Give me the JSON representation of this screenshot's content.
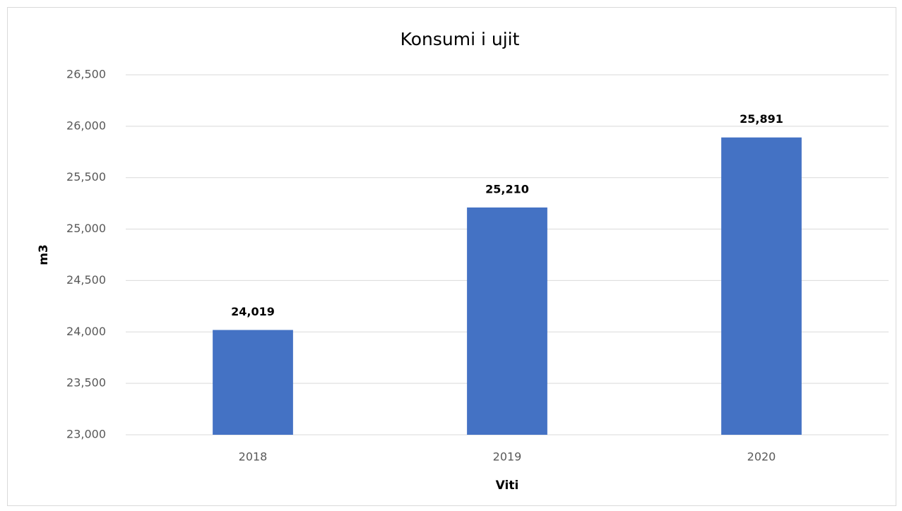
{
  "chart_data": {
    "type": "bar",
    "title": "Konsumi i ujit",
    "x_label": "Viti",
    "y_label": "m3",
    "categories": [
      "2018",
      "2019",
      "2020"
    ],
    "values": [
      24019,
      25210,
      25891
    ],
    "value_labels": [
      "24,019",
      "25,210",
      "25,891"
    ],
    "color": "#4472c4",
    "ylim": [
      23000,
      26500
    ],
    "yticks": [
      {
        "value": 23000,
        "label": "23,000"
      },
      {
        "value": 23500,
        "label": "23,500"
      },
      {
        "value": 24000,
        "label": "24,000"
      },
      {
        "value": 24500,
        "label": "24,500"
      },
      {
        "value": 25000,
        "label": "25,000"
      },
      {
        "value": 25500,
        "label": "25,500"
      },
      {
        "value": 26000,
        "label": "26,000"
      },
      {
        "value": 26500,
        "label": "26,500"
      }
    ],
    "grid": true
  }
}
